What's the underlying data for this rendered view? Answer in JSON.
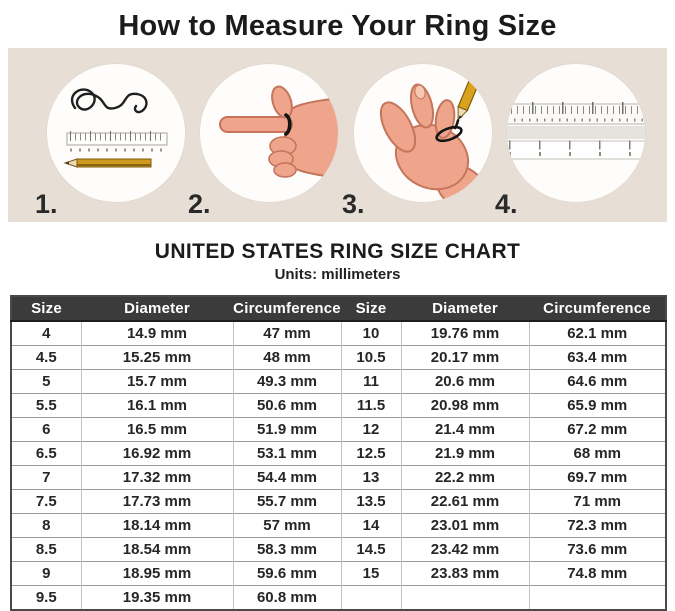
{
  "title": "How to Measure Your Ring Size",
  "steps": [
    {
      "number": "1.",
      "icon": "string-ruler-pencil-icon"
    },
    {
      "number": "2.",
      "icon": "hand-pointing-with-ring-icon"
    },
    {
      "number": "3.",
      "icon": "string-around-finger-pencil-icon"
    },
    {
      "number": "4.",
      "icon": "ruler-closeup-icon"
    }
  ],
  "section": {
    "heading": "UNITED STATES RING SIZE CHART",
    "units_label": "Units: millimeters"
  },
  "chart_data": {
    "type": "table",
    "title": "UNITED STATES RING SIZE CHART",
    "units": "millimeters",
    "columns": [
      "Size",
      "Diameter",
      "Circumference",
      "Size",
      "Diameter",
      "Circumference"
    ],
    "rows": [
      [
        "4",
        "14.9 mm",
        "47 mm",
        "10",
        "19.76 mm",
        "62.1 mm"
      ],
      [
        "4.5",
        "15.25 mm",
        "48 mm",
        "10.5",
        "20.17 mm",
        "63.4 mm"
      ],
      [
        "5",
        "15.7 mm",
        "49.3 mm",
        "11",
        "20.6 mm",
        "64.6 mm"
      ],
      [
        "5.5",
        "16.1 mm",
        "50.6 mm",
        "11.5",
        "20.98 mm",
        "65.9 mm"
      ],
      [
        "6",
        "16.5 mm",
        "51.9 mm",
        "12",
        "21.4 mm",
        "67.2 mm"
      ],
      [
        "6.5",
        "16.92 mm",
        "53.1 mm",
        "12.5",
        "21.9 mm",
        "68 mm"
      ],
      [
        "7",
        "17.32 mm",
        "54.4 mm",
        "13",
        "22.2 mm",
        "69.7 mm"
      ],
      [
        "7.5",
        "17.73 mm",
        "55.7 mm",
        "13.5",
        "22.61 mm",
        "71 mm"
      ],
      [
        "8",
        "18.14 mm",
        "57 mm",
        "14",
        "23.01 mm",
        "72.3 mm"
      ],
      [
        "8.5",
        "18.54 mm",
        "58.3 mm",
        "14.5",
        "23.42 mm",
        "73.6 mm"
      ],
      [
        "9",
        "18.95 mm",
        "59.6 mm",
        "15",
        "23.83 mm",
        "74.8 mm"
      ],
      [
        "9.5",
        "19.35 mm",
        "60.8 mm",
        "",
        "",
        ""
      ]
    ]
  },
  "colors": {
    "band_bg": "#e7dfd6",
    "header_bg": "#3b3b3b",
    "header_text": "#ffffff",
    "skin": "#efa58b",
    "skin_outline": "#c4755c",
    "pencil_body": "#cf9a1e",
    "string": "#1a1a1a"
  }
}
